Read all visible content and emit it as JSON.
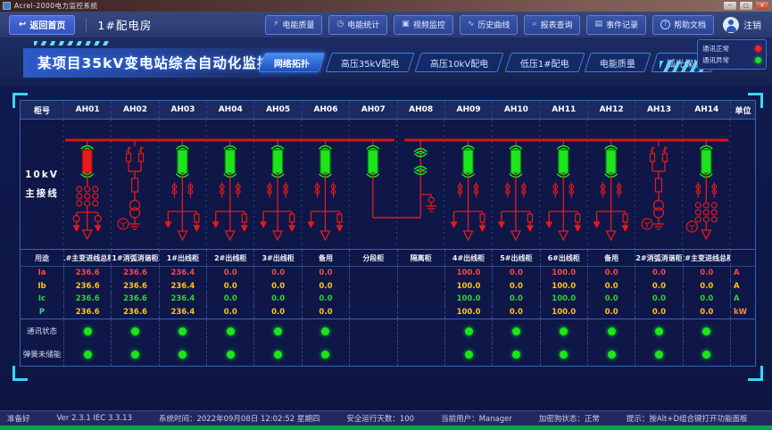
{
  "window": {
    "title": "Acrel-2000电力监控系统"
  },
  "toolbar": {
    "back_label": "返回首页",
    "room_label": "1#配电房",
    "buttons": [
      {
        "icon": "power-quality",
        "glyph": "⚡",
        "label": "电能质量"
      },
      {
        "icon": "energy-statistics",
        "glyph": "◷",
        "label": "电能统计"
      },
      {
        "icon": "video-monitor",
        "glyph": "▣",
        "label": "视频监控"
      },
      {
        "icon": "history-curve",
        "glyph": "∿",
        "label": "历史曲线"
      },
      {
        "icon": "report-query",
        "glyph": "⌕",
        "label": "报表查询"
      },
      {
        "icon": "event-record",
        "glyph": "▤",
        "label": "事件记录"
      },
      {
        "icon": "help-doc",
        "glyph": "?",
        "label": "帮助文档"
      }
    ],
    "logout_label": "注销"
  },
  "header": {
    "title": "某项目35kV变电站综合自动化监控系统",
    "tabs": [
      {
        "label": "网络拓扑",
        "active": true
      },
      {
        "label": "高压35kV配电",
        "active": false
      },
      {
        "label": "高压10kV配电",
        "active": false
      },
      {
        "label": "低压1#配电",
        "active": false
      },
      {
        "label": "电能质量",
        "active": false
      },
      {
        "label": "弧光保护",
        "active": false
      }
    ],
    "legend": [
      {
        "label": "通讯正常",
        "color": "#ff2222"
      },
      {
        "label": "通讯异常",
        "color": "#1de41d"
      }
    ]
  },
  "table": {
    "cabinet_header": "柜号",
    "unit_header": "单位",
    "bus_label_line1": "10kV",
    "bus_label_line2": "主接线",
    "usage_label": "用途",
    "row_labels": [
      {
        "label": "Ia",
        "color": "#ff4545"
      },
      {
        "label": "Ib",
        "color": "#ffc21a"
      },
      {
        "label": "Ic",
        "color": "#2fd32f"
      },
      {
        "label": "P",
        "color": "#2fd38a"
      }
    ],
    "value_colors": [
      "#ff4545",
      "#ffc21a",
      "#2fd32f",
      "#ffc21a"
    ],
    "units": [
      {
        "text": "A",
        "color": "#ff4545"
      },
      {
        "text": "A",
        "color": "#ffc21a"
      },
      {
        "text": "A",
        "color": "#2fd32f"
      },
      {
        "text": "kW",
        "color": "#ff8a3a"
      }
    ],
    "status_rows": [
      {
        "label": "通讯状态"
      },
      {
        "label": "弹簧未储能"
      }
    ],
    "columns": [
      {
        "id": "AH01",
        "usage": "1#主变进线总柜",
        "values": [
          "236.6",
          "236.6",
          "236.6",
          "236.6"
        ],
        "comm": true,
        "spring": true,
        "symbol": "incomer-closed"
      },
      {
        "id": "AH02",
        "usage": "1#消弧消谐柜",
        "values": [
          "236.6",
          "236.6",
          "236.6",
          "236.6"
        ],
        "comm": true,
        "spring": true,
        "symbol": "arc-suppression"
      },
      {
        "id": "AH03",
        "usage": "1#出线柜",
        "values": [
          "236.4",
          "236.4",
          "236.4",
          "236.4"
        ],
        "comm": true,
        "spring": true,
        "symbol": "feeder"
      },
      {
        "id": "AH04",
        "usage": "2#出线柜",
        "values": [
          "0.0",
          "0.0",
          "0.0",
          "0.0"
        ],
        "comm": true,
        "spring": true,
        "symbol": "feeder"
      },
      {
        "id": "AH05",
        "usage": "3#出线柜",
        "values": [
          "0.0",
          "0.0",
          "0.0",
          "0.0"
        ],
        "comm": true,
        "spring": true,
        "symbol": "feeder"
      },
      {
        "id": "AH06",
        "usage": "备用",
        "values": [
          "0.0",
          "0.0",
          "0.0",
          "0.0"
        ],
        "comm": true,
        "spring": true,
        "symbol": "feeder"
      },
      {
        "id": "AH07",
        "usage": "分段柜",
        "values": null,
        "comm": false,
        "spring": false,
        "symbol": "bus-tie-breaker"
      },
      {
        "id": "AH08",
        "usage": "隔离柜",
        "values": null,
        "comm": false,
        "spring": false,
        "symbol": "bus-tie-isolator"
      },
      {
        "id": "AH09",
        "usage": "4#出线柜",
        "values": [
          "100.0",
          "100.0",
          "100.0",
          "100.0"
        ],
        "comm": true,
        "spring": true,
        "symbol": "feeder"
      },
      {
        "id": "AH10",
        "usage": "5#出线柜",
        "values": [
          "0.0",
          "0.0",
          "0.0",
          "0.0"
        ],
        "comm": true,
        "spring": true,
        "symbol": "feeder"
      },
      {
        "id": "AH11",
        "usage": "6#出线柜",
        "values": [
          "100.0",
          "100.0",
          "100.0",
          "100.0"
        ],
        "comm": true,
        "spring": true,
        "symbol": "feeder"
      },
      {
        "id": "AH12",
        "usage": "备用",
        "values": [
          "0.0",
          "0.0",
          "0.0",
          "0.0"
        ],
        "comm": true,
        "spring": true,
        "symbol": "feeder"
      },
      {
        "id": "AH13",
        "usage": "2#消弧消谐柜",
        "values": [
          "0.0",
          "0.0",
          "0.0",
          "0.0"
        ],
        "comm": true,
        "spring": true,
        "symbol": "arc-suppression"
      },
      {
        "id": "AH14",
        "usage": "2#主变进线总柜",
        "values": [
          "0.0",
          "0.0",
          "0.0",
          "0.0"
        ],
        "comm": true,
        "spring": true,
        "symbol": "incomer-open"
      }
    ]
  },
  "statusbar": {
    "items": [
      "准备好",
      "Ver 2.3.1 IEC 3.3.13",
      "系统时间：2022年09月08日 12:02:52 星期四",
      "安全运行天数：100",
      "当前用户：Manager",
      "加密狗状态：正常",
      "提示：按Alt+D组合键打开功能面板"
    ],
    "num_label": "NUM"
  },
  "colors": {
    "accent_cyan": "#38d6ff",
    "bus_red": "#d81515",
    "symbol_red": "#e81a1a",
    "symbol_green": "#1ce51c",
    "ok_green": "#1de41d",
    "alarm_red": "#ff2222"
  }
}
